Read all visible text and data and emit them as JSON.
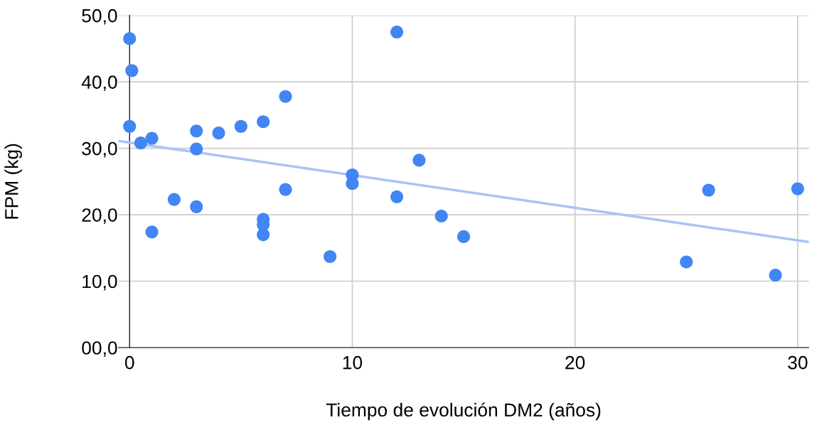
{
  "chart_data": {
    "type": "scatter",
    "xlabel": "Tiempo de evolución DM2 (años)",
    "ylabel": "FPM (kg)",
    "xlim": [
      -0.5,
      30.5
    ],
    "xticks": [
      0,
      10,
      20,
      30
    ],
    "ylim": [
      0,
      50
    ],
    "yticks": [
      {
        "value": 0,
        "label": "00,0"
      },
      {
        "value": 10,
        "label": "10,0"
      },
      {
        "value": 20,
        "label": "20,0"
      },
      {
        "value": 30,
        "label": "30,0"
      },
      {
        "value": 40,
        "label": "40,0"
      },
      {
        "value": 50,
        "label": "50,0"
      }
    ],
    "grid": true,
    "series": [
      {
        "marker": "circle",
        "color": "#4285f4",
        "x": [
          0,
          0.1,
          0,
          0.5,
          1,
          1,
          2,
          3,
          3,
          3,
          4,
          5,
          6,
          6,
          6,
          6,
          7,
          7,
          9,
          10,
          10,
          12,
          12,
          13,
          14,
          15,
          25,
          26,
          29,
          30
        ],
        "values": [
          46.5,
          41.7,
          33.3,
          30.8,
          31.5,
          17.4,
          22.3,
          32.6,
          29.9,
          21.2,
          32.3,
          33.3,
          34.0,
          19.3,
          18.5,
          17.0,
          37.8,
          23.8,
          13.7,
          26.0,
          24.7,
          47.5,
          22.7,
          28.2,
          19.8,
          16.7,
          12.9,
          23.7,
          10.9,
          23.9
        ]
      },
      {
        "type": "line",
        "marker": "none",
        "color": "#a9c4f5",
        "x": [
          -0.5,
          30.5
        ],
        "values": [
          31.1,
          15.9
        ]
      }
    ]
  }
}
